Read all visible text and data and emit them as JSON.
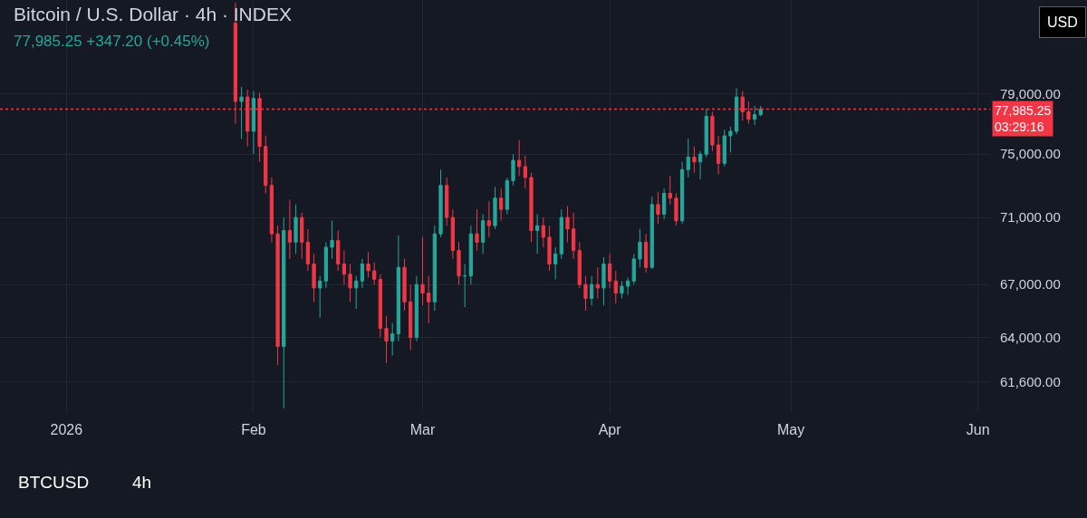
{
  "chart_data": {
    "type": "candlestick",
    "title": "Bitcoin / U.S. Dollar · 4h · INDEX",
    "subtitle": "77,985.25 +347.20 (+0.45%)",
    "annotations": [
      "USD",
      "BTCUSD",
      "4h"
    ],
    "x": [
      "2026-01-29",
      "2026-01-30",
      "2026-01-31",
      "2026-02-01",
      "2026-02-02",
      "2026-02-03",
      "2026-02-04",
      "2026-02-05",
      "2026-02-06",
      "2026-02-07",
      "2026-02-08",
      "2026-02-09",
      "2026-02-10",
      "2026-02-11",
      "2026-02-12",
      "2026-02-13",
      "2026-02-14",
      "2026-02-15",
      "2026-02-16",
      "2026-02-17",
      "2026-02-18",
      "2026-02-19",
      "2026-02-20",
      "2026-02-21",
      "2026-02-22",
      "2026-02-23",
      "2026-02-24",
      "2026-02-25",
      "2026-02-26",
      "2026-02-27",
      "2026-02-28",
      "2026-03-01",
      "2026-03-02",
      "2026-03-03",
      "2026-03-04",
      "2026-03-05",
      "2026-03-06",
      "2026-03-07",
      "2026-03-08",
      "2026-03-09",
      "2026-03-10",
      "2026-03-11",
      "2026-03-12",
      "2026-03-13",
      "2026-03-14",
      "2026-03-15",
      "2026-03-16",
      "2026-03-17",
      "2026-03-18",
      "2026-03-19",
      "2026-03-20",
      "2026-03-21",
      "2026-03-22",
      "2026-03-23",
      "2026-03-24",
      "2026-03-25",
      "2026-03-26",
      "2026-03-27",
      "2026-03-28",
      "2026-03-29",
      "2026-03-30",
      "2026-03-31",
      "2026-04-01",
      "2026-04-02",
      "2026-04-03",
      "2026-04-04",
      "2026-04-05",
      "2026-04-06",
      "2026-04-07",
      "2026-04-08",
      "2026-04-09",
      "2026-04-10",
      "2026-04-11",
      "2026-04-12",
      "2026-04-13",
      "2026-04-14",
      "2026-04-15",
      "2026-04-16",
      "2026-04-17",
      "2026-04-18",
      "2026-04-19",
      "2026-04-20",
      "2026-04-21",
      "2026-04-22",
      "2026-04-23",
      "2026-04-24",
      "2026-04-25",
      "2026-04-26"
    ],
    "ohlc": [
      [
        84000,
        85500,
        77000,
        78500
      ],
      [
        78500,
        79500,
        76000,
        78800
      ],
      [
        78800,
        79300,
        75500,
        76500
      ],
      [
        76500,
        79200,
        75000,
        78700
      ],
      [
        78700,
        79100,
        74500,
        75500
      ],
      [
        75500,
        76200,
        72500,
        73000
      ],
      [
        73000,
        73500,
        69500,
        70000
      ],
      [
        70000,
        70500,
        62500,
        63500
      ],
      [
        63500,
        71000,
        60200,
        70200
      ],
      [
        70200,
        72100,
        68500,
        69500
      ],
      [
        69500,
        71800,
        68800,
        71000
      ],
      [
        71000,
        71300,
        68500,
        69500
      ],
      [
        69500,
        70300,
        67800,
        68200
      ],
      [
        68200,
        68800,
        66000,
        66800
      ],
      [
        66800,
        67500,
        65100,
        67200
      ],
      [
        67200,
        69500,
        66800,
        69200
      ],
      [
        69200,
        70800,
        68500,
        69600
      ],
      [
        69600,
        70200,
        67800,
        68200
      ],
      [
        68200,
        69000,
        67000,
        67600
      ],
      [
        67600,
        68200,
        66000,
        66800
      ],
      [
        66800,
        67500,
        65600,
        67200
      ],
      [
        67200,
        68500,
        66800,
        68200
      ],
      [
        68200,
        68900,
        67400,
        67800
      ],
      [
        67800,
        68300,
        67000,
        67300
      ],
      [
        67300,
        67600,
        64000,
        64500
      ],
      [
        64500,
        65200,
        62600,
        63800
      ],
      [
        63800,
        64800,
        63000,
        64200
      ],
      [
        64200,
        69900,
        63800,
        68000
      ],
      [
        68000,
        68500,
        65500,
        66000
      ],
      [
        66000,
        67000,
        63300,
        64000
      ],
      [
        64000,
        67500,
        63800,
        67000
      ],
      [
        67000,
        69800,
        65800,
        66500
      ],
      [
        66500,
        67500,
        64800,
        66000
      ],
      [
        66000,
        70500,
        65500,
        70000
      ],
      [
        70000,
        74000,
        69800,
        73000
      ],
      [
        73000,
        73500,
        70500,
        71000
      ],
      [
        71000,
        71500,
        68500,
        69000
      ],
      [
        69000,
        69500,
        67000,
        67500
      ],
      [
        67500,
        68200,
        65700,
        67500
      ],
      [
        67500,
        70500,
        67000,
        70000
      ],
      [
        70000,
        71500,
        69000,
        69500
      ],
      [
        69500,
        71200,
        68800,
        70800
      ],
      [
        70800,
        72000,
        69800,
        70500
      ],
      [
        70500,
        72900,
        70300,
        72200
      ],
      [
        72200,
        72800,
        70800,
        71500
      ],
      [
        71500,
        73500,
        71200,
        73300
      ],
      [
        73300,
        75000,
        73000,
        74600
      ],
      [
        74600,
        75900,
        73600,
        74200
      ],
      [
        74200,
        74900,
        72800,
        73500
      ],
      [
        73500,
        73800,
        69500,
        70200
      ],
      [
        70200,
        71200,
        68800,
        70500
      ],
      [
        70500,
        71000,
        69200,
        69800
      ],
      [
        69800,
        70500,
        67800,
        68200
      ],
      [
        68200,
        69200,
        67300,
        68800
      ],
      [
        68800,
        71500,
        68500,
        71000
      ],
      [
        71000,
        71700,
        69500,
        70300
      ],
      [
        70300,
        71300,
        68500,
        69000
      ],
      [
        69000,
        69500,
        66800,
        67000
      ],
      [
        67000,
        67500,
        65500,
        66200
      ],
      [
        66200,
        67500,
        65800,
        67000
      ],
      [
        67000,
        68000,
        66200,
        66800
      ],
      [
        66800,
        68600,
        65800,
        68200
      ],
      [
        68200,
        68800,
        66800,
        67200
      ],
      [
        67200,
        67800,
        65900,
        66500
      ],
      [
        66500,
        67200,
        66200,
        66900
      ],
      [
        66900,
        67400,
        66400,
        67200
      ],
      [
        67200,
        68800,
        67000,
        68500
      ],
      [
        68500,
        70300,
        68000,
        69500
      ],
      [
        69500,
        70000,
        67700,
        68000
      ],
      [
        68000,
        72300,
        67900,
        71800
      ],
      [
        71800,
        72600,
        70600,
        71200
      ],
      [
        71200,
        72800,
        70900,
        72500
      ],
      [
        72500,
        73600,
        71800,
        72200
      ],
      [
        72200,
        72500,
        70500,
        70800
      ],
      [
        70800,
        74500,
        70600,
        74000
      ],
      [
        74000,
        76000,
        73500,
        74800
      ],
      [
        74800,
        75500,
        73800,
        74500
      ],
      [
        74500,
        75200,
        73400,
        75000
      ],
      [
        75000,
        78000,
        74800,
        77500
      ],
      [
        77500,
        77800,
        75200,
        75600
      ],
      [
        75600,
        76200,
        73700,
        74400
      ],
      [
        74400,
        76600,
        74200,
        76200
      ],
      [
        76200,
        76800,
        75100,
        76500
      ],
      [
        76500,
        79400,
        76300,
        78800
      ],
      [
        78800,
        79200,
        77200,
        77800
      ],
      [
        77800,
        78500,
        77000,
        77300
      ],
      [
        77300,
        78200,
        76900,
        77600
      ],
      [
        77600,
        78200,
        77500,
        77985.25
      ]
    ],
    "colors": [
      "#f23645",
      "#26a69a",
      "#f23645",
      "#26a69a",
      "#f23645",
      "#f23645",
      "#f23645",
      "#f23645",
      "#26a69a",
      "#f23645",
      "#26a69a",
      "#f23645",
      "#f23645",
      "#f23645",
      "#26a69a",
      "#26a69a",
      "#26a69a",
      "#f23645",
      "#f23645",
      "#f23645",
      "#26a69a",
      "#26a69a",
      "#f23645",
      "#f23645",
      "#f23645",
      "#f23645",
      "#26a69a",
      "#26a69a",
      "#f23645",
      "#f23645",
      "#26a69a",
      "#f23645",
      "#f23645",
      "#26a69a",
      "#26a69a",
      "#f23645",
      "#f23645",
      "#f23645",
      "#26a69a",
      "#26a69a",
      "#f23645",
      "#26a69a",
      "#f23645",
      "#26a69a",
      "#f23645",
      "#26a69a",
      "#26a69a",
      "#f23645",
      "#f23645",
      "#f23645",
      "#26a69a",
      "#f23645",
      "#f23645",
      "#26a69a",
      "#26a69a",
      "#f23645",
      "#f23645",
      "#f23645",
      "#f23645",
      "#26a69a",
      "#f23645",
      "#26a69a",
      "#f23645",
      "#f23645",
      "#26a69a",
      "#26a69a",
      "#26a69a",
      "#26a69a",
      "#f23645",
      "#26a69a",
      "#f23645",
      "#26a69a",
      "#f23645",
      "#f23645",
      "#26a69a",
      "#26a69a",
      "#f23645",
      "#26a69a",
      "#26a69a",
      "#f23645",
      "#f23645",
      "#26a69a",
      "#26a69a",
      "#26a69a",
      "#f23645",
      "#f23645",
      "#26a69a",
      "#26a69a"
    ],
    "log": true,
    "xlim": [
      "2025-12-21",
      "2026-06-03"
    ],
    "xticks": [
      {
        "value": "2026-01-01",
        "label": "2026"
      },
      {
        "value": "2026-02-01",
        "label": "Feb"
      },
      {
        "value": "2026-03-01",
        "label": "Mar"
      },
      {
        "value": "2026-04-01",
        "label": "Apr"
      },
      {
        "value": "2026-05-01",
        "label": "May"
      },
      {
        "value": "2026-06-01",
        "label": "Jun"
      }
    ],
    "ylim": [
      60000,
      85700
    ],
    "yticks": [
      {
        "value": 61600,
        "label": "61,600.00"
      },
      {
        "value": 64000,
        "label": "64,000.00"
      },
      {
        "value": 67000,
        "label": "67,000.00"
      },
      {
        "value": 71000,
        "label": "71,000.00"
      },
      {
        "value": 75000,
        "label": "75,000.00"
      },
      {
        "value": 79000,
        "label": "79,000.00"
      }
    ],
    "ref_lines": [
      {
        "axis": "y",
        "value": 77985.25,
        "label": "77,985.25\n03:29:16",
        "color": "#f23645",
        "line_style": "dotted"
      }
    ],
    "grid": true
  }
}
